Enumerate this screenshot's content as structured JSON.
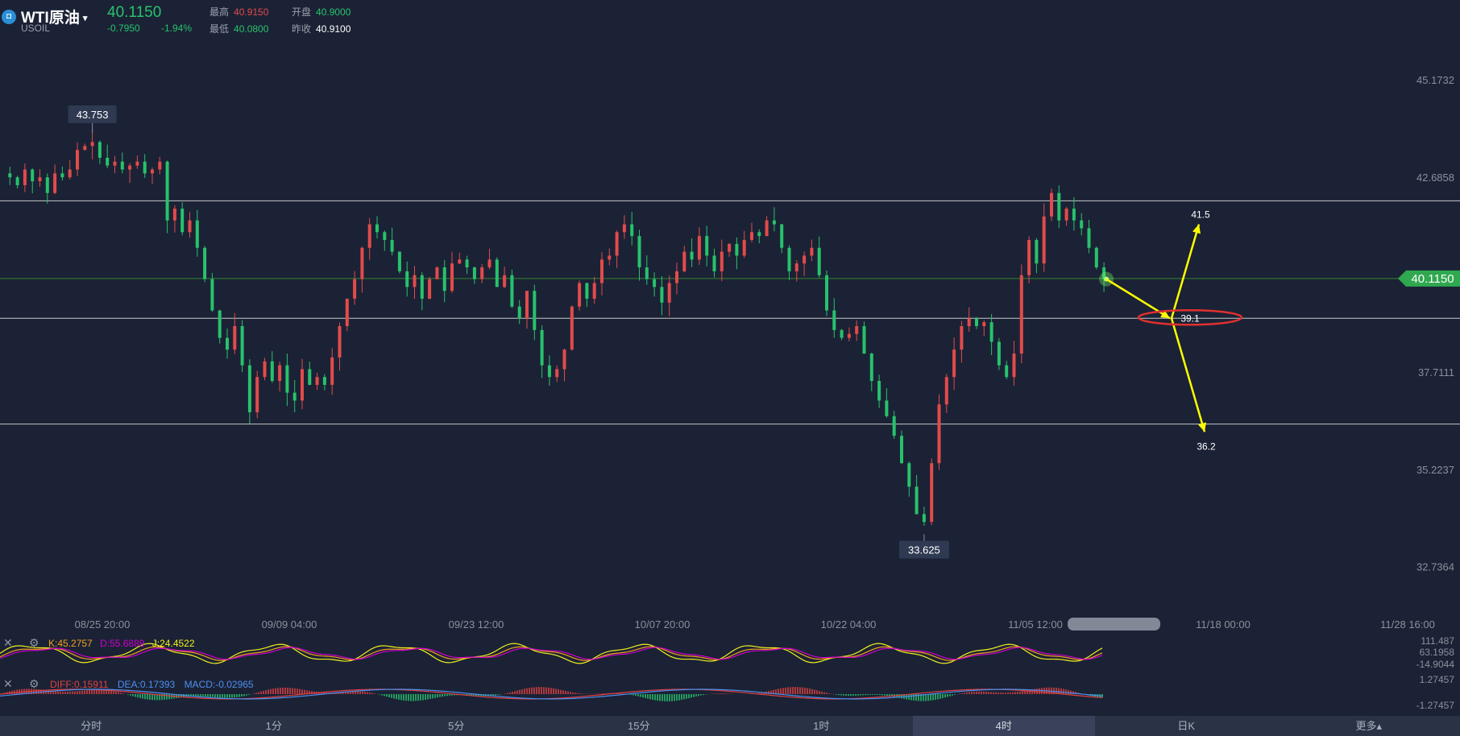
{
  "header": {
    "symbol": "WTI原油",
    "caret": "▾",
    "code": "USOIL",
    "logo_glyph": "◘",
    "last_price": "40.1150",
    "change": "-0.7950",
    "change_pct": "-1.94%",
    "high_label": "最高",
    "high_value": "40.9150",
    "open_label": "开盘",
    "open_value": "40.9000",
    "low_label": "最低",
    "low_value": "40.0800",
    "prev_close_label": "昨收",
    "prev_close_value": "40.9100"
  },
  "indicators": {
    "kdj": {
      "k_text": "K:45.2757",
      "d_text": "D:55.6889",
      "j_text": "J:24.4522",
      "axis": [
        "111.487",
        "63.1958",
        "-14.9044"
      ]
    },
    "macd": {
      "diff_text": "DIFF:0.15911",
      "dea_text": "DEA:0.17393",
      "macd_text": "MACD:-0.02965",
      "axis": [
        "1.27457",
        "-1.27457"
      ]
    },
    "close_icon": "close-icon",
    "settings_icon": "gear-icon"
  },
  "tabs": [
    "分时",
    "1分",
    "5分",
    "15分",
    "1时",
    "4时",
    "日K",
    "更多▴"
  ],
  "active_tab": "4时",
  "colors": {
    "up": "#e24b4b",
    "down": "#27c26c",
    "bg": "#1b2235",
    "annotation": "#ffff00",
    "ellipse": "#e03030",
    "k": "#f0a020",
    "d": "#d000d0",
    "j": "#f0f020",
    "dea": "#4d8ff0",
    "diff": "#e04040"
  },
  "chart_data": {
    "type": "candlestick",
    "y_axis_ticks": [
      45.1732,
      42.6858,
      40.115,
      37.7111,
      35.2237,
      32.7364
    ],
    "ylim": [
      31.6,
      46.2
    ],
    "x_axis_ticks": [
      "08/25 20:00",
      "09/09 04:00",
      "09/23 12:00",
      "10/07 20:00",
      "10/22 04:00",
      "11/05 12:00",
      "11/18 00:00",
      "11/28 16:00"
    ],
    "current_price_label": "40.1150",
    "high_marker": {
      "label": "43.753",
      "value": 43.753
    },
    "low_marker": {
      "label": "33.625",
      "value": 33.625
    },
    "horizontal_lines": [
      {
        "value": 42.1,
        "color": "#c8c8c8"
      },
      {
        "value": 40.115,
        "color": "#2f8a2f"
      },
      {
        "value": 39.1,
        "color": "#c8c8c8"
      },
      {
        "value": 36.4,
        "color": "#c8c8c8"
      }
    ],
    "annotations": {
      "origin_price": 40.1,
      "pivot": {
        "label": "39.1",
        "value": 39.1
      },
      "up_target": {
        "label": "41.5",
        "value": 41.5
      },
      "down_target": {
        "label": "36.2",
        "value": 36.2
      }
    },
    "price_path": [
      42.8,
      42.7,
      42.5,
      42.9,
      42.6,
      42.7,
      42.3,
      42.8,
      42.7,
      42.9,
      43.4,
      43.5,
      43.6,
      43.2,
      43.0,
      43.1,
      42.9,
      43.0,
      43.1,
      42.8,
      42.9,
      43.1,
      41.6,
      41.9,
      41.3,
      41.6,
      40.9,
      40.1,
      39.3,
      38.6,
      38.3,
      38.9,
      37.9,
      36.7,
      37.6,
      38.0,
      37.5,
      37.9,
      37.2,
      37.0,
      37.8,
      37.4,
      37.6,
      37.4,
      38.1,
      38.9,
      39.6,
      40.1,
      40.9,
      41.5,
      41.3,
      41.1,
      40.8,
      40.3,
      39.9,
      40.2,
      39.6,
      40.1,
      40.4,
      39.8,
      40.5,
      40.6,
      40.4,
      40.1,
      40.4,
      40.6,
      39.9,
      40.2,
      39.4,
      39.1,
      39.8,
      38.8,
      37.9,
      37.6,
      37.8,
      38.3,
      39.4,
      40.0,
      39.6,
      40.0,
      40.6,
      40.7,
      41.3,
      41.5,
      41.2,
      40.4,
      40.1,
      39.9,
      39.5,
      40.0,
      40.3,
      40.8,
      40.6,
      41.2,
      40.7,
      40.3,
      40.8,
      41.0,
      40.7,
      41.1,
      41.3,
      41.2,
      41.6,
      41.5,
      40.9,
      40.3,
      40.5,
      40.7,
      40.9,
      40.2,
      39.3,
      38.8,
      38.6,
      38.7,
      38.9,
      38.2,
      37.5,
      37.0,
      36.6,
      36.1,
      35.4,
      34.8,
      34.1,
      33.9,
      35.4,
      36.9,
      37.6,
      38.3,
      38.9,
      39.1,
      38.9,
      39.0,
      38.5,
      37.9,
      37.6,
      38.2,
      40.2,
      41.1,
      40.5,
      41.7,
      42.3,
      41.6,
      41.9,
      41.6,
      41.4,
      40.9,
      40.4,
      40.1
    ]
  }
}
